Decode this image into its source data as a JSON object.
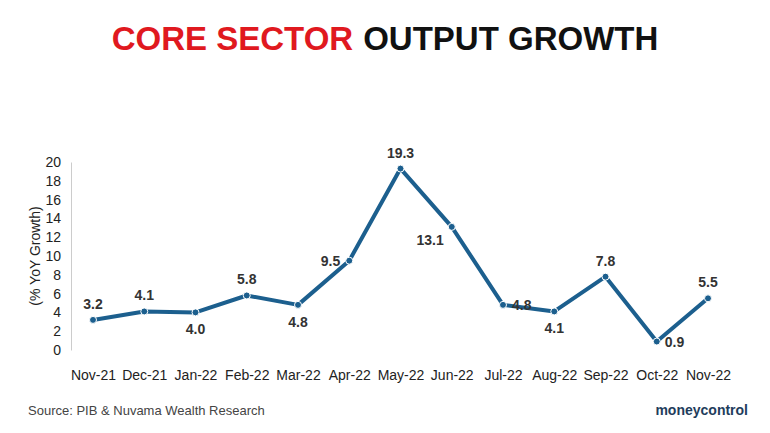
{
  "chart_data": {
    "type": "line",
    "title": [
      "CORE SECTOR",
      "OUTPUT GROWTH"
    ],
    "y_label": "(% YoY Growth)",
    "source": "Source: PIB & Nuvama Wealth Research",
    "brand": "moneycontrol",
    "categories": [
      "Nov-21",
      "Dec-21",
      "Jan-22",
      "Feb-22",
      "Mar-22",
      "Apr-22",
      "May-22",
      "Jun-22",
      "Jul-22",
      "Aug-22",
      "Sep-22",
      "Oct-22",
      "Nov-22"
    ],
    "values": [
      3.2,
      4.1,
      4.0,
      5.8,
      4.8,
      9.5,
      19.3,
      13.1,
      4.8,
      4.1,
      7.8,
      0.9,
      5.5
    ],
    "value_labels": [
      "3.2",
      "4.1",
      "4.0",
      "5.8",
      "4.8",
      "9.5",
      "19.3",
      "13.1",
      "4.8",
      "4.1",
      "7.8",
      "0.9",
      "5.5"
    ],
    "color": "#1c5f8e",
    "marker": "circle",
    "line_style": "solid",
    "data_labels": true,
    "grid": false,
    "ylim": [
      0,
      20
    ],
    "yticks": [
      0,
      2,
      4,
      6,
      8,
      10,
      12,
      14,
      16,
      18,
      20
    ]
  }
}
